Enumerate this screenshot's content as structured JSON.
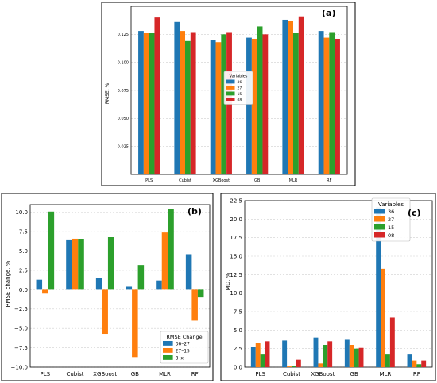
{
  "colors": {
    "36": "#1f77b4",
    "27": "#ff7f0e",
    "15": "#2ca02c",
    "08": "#d62728",
    "grid": "#cfcfcf"
  },
  "chart_data": [
    {
      "id": "a",
      "panel_label": "(a)",
      "type": "bar",
      "ylabel": "RMSE, %",
      "ylim": [
        0,
        0.15
      ],
      "yticks": [
        "0.025",
        "0.050",
        "0.075",
        "0.100",
        "0.125"
      ],
      "grid": true,
      "legend": {
        "title": "Variables",
        "placement": "center",
        "labels": [
          "36",
          "27",
          "15",
          "08"
        ]
      },
      "categories": [
        "PLS",
        "Cubist",
        "XGBoost",
        "GB",
        "MLR",
        "RF"
      ],
      "series": [
        {
          "name": "36",
          "values": [
            0.128,
            0.136,
            0.12,
            0.122,
            0.138,
            0.128
          ]
        },
        {
          "name": "27",
          "values": [
            0.126,
            0.128,
            0.118,
            0.121,
            0.137,
            0.122
          ]
        },
        {
          "name": "15",
          "values": [
            0.126,
            0.119,
            0.125,
            0.132,
            0.126,
            0.127
          ]
        },
        {
          "name": "08",
          "values": [
            0.14,
            0.127,
            0.127,
            0.125,
            0.141,
            0.121
          ]
        }
      ]
    },
    {
      "id": "b",
      "panel_label": "(b)",
      "type": "bar",
      "ylabel": "RMSE change, %",
      "ylim": [
        -10,
        11
      ],
      "yticks": [
        "−10.0",
        "−7.5",
        "−5.0",
        "−2.5",
        "0.0",
        "2.5",
        "5.0",
        "7.5",
        "10.0"
      ],
      "grid": true,
      "legend": {
        "title": "RMSE Change",
        "placement": "lower right",
        "labels": [
          "36–27",
          "27–15",
          "8–x"
        ]
      },
      "categories": [
        "PLS",
        "Cubist",
        "XGBoost",
        "GB",
        "MLR",
        "RF"
      ],
      "series": [
        {
          "name": "36–27",
          "values": [
            1.3,
            6.4,
            1.5,
            0.4,
            1.2,
            4.6
          ]
        },
        {
          "name": "27–15",
          "values": [
            -0.5,
            6.6,
            -5.7,
            -8.7,
            7.4,
            -4.0
          ]
        },
        {
          "name": "8–x",
          "values": [
            10.1,
            6.5,
            6.8,
            3.2,
            10.4,
            -1.0
          ]
        }
      ]
    },
    {
      "id": "c",
      "panel_label": "(c)",
      "type": "bar",
      "ylabel": "MD, %",
      "ylim": [
        0,
        22.5
      ],
      "yticks": [
        "0.0",
        "2.5",
        "5.0",
        "7.5",
        "10.0",
        "12.5",
        "15.0",
        "17.5",
        "20.0",
        "22.5"
      ],
      "grid": true,
      "legend": {
        "title": "Variables",
        "placement": "top-right",
        "labels": [
          "36",
          "27",
          "15",
          "08"
        ]
      },
      "categories": [
        "PLS",
        "Cubist",
        "XGBoost",
        "GB",
        "MLR",
        "RF"
      ],
      "series": [
        {
          "name": "36",
          "values": [
            2.7,
            3.6,
            4.0,
            3.7,
            21.6,
            1.7
          ]
        },
        {
          "name": "27",
          "values": [
            3.3,
            0.1,
            0.5,
            3.0,
            13.3,
            0.9
          ]
        },
        {
          "name": "15",
          "values": [
            1.7,
            0.2,
            3.0,
            2.5,
            1.7,
            0.4
          ]
        },
        {
          "name": "08",
          "values": [
            3.5,
            1.0,
            3.5,
            2.6,
            6.7,
            0.9
          ]
        }
      ]
    }
  ]
}
